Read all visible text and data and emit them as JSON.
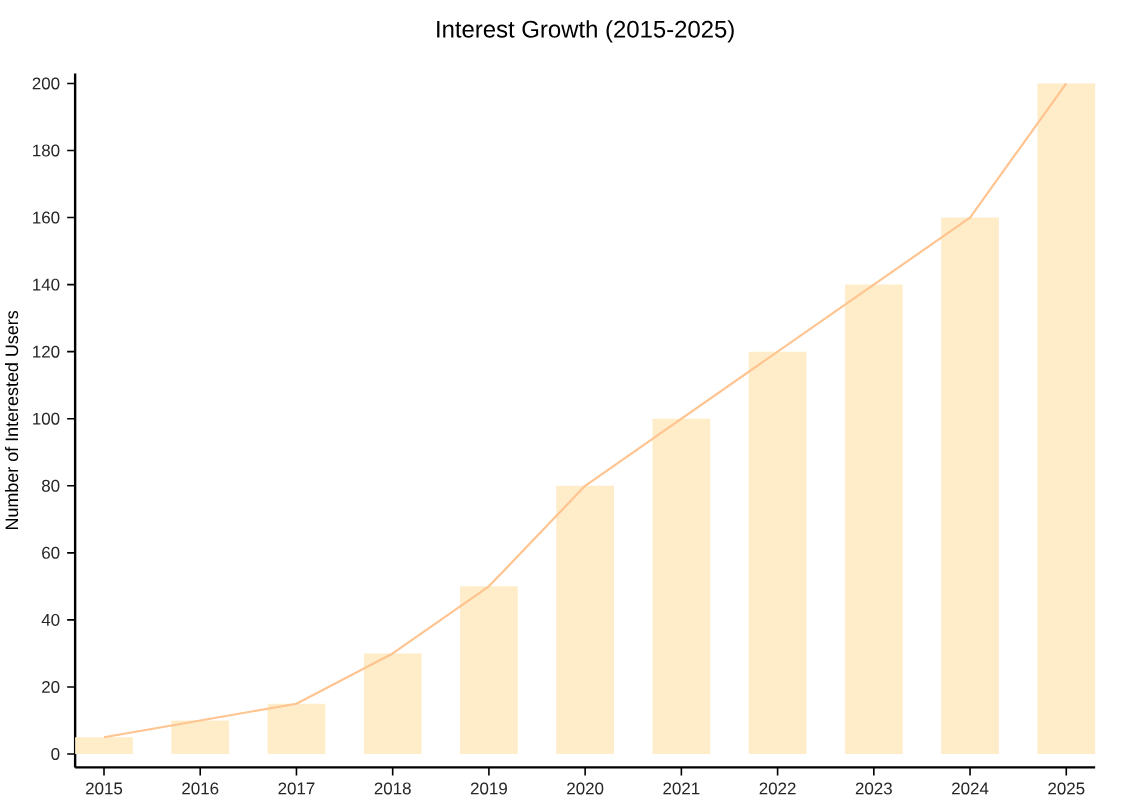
{
  "chart_data": {
    "type": "bar",
    "title": "Interest Growth (2015-2025)",
    "ylabel": "Number of Interested Users",
    "categories": [
      "2015",
      "2016",
      "2017",
      "2018",
      "2019",
      "2020",
      "2021",
      "2022",
      "2023",
      "2024",
      "2025"
    ],
    "series": [
      {
        "color": "#ffecc9",
        "values": [
          5,
          10,
          15,
          30,
          50,
          80,
          100,
          120,
          140,
          160,
          200
        ]
      },
      {
        "type": "line",
        "color": "#ffc48f",
        "values": [
          5,
          10,
          15,
          30,
          50,
          80,
          100,
          120,
          140,
          160,
          200
        ]
      }
    ],
    "ylim": [
      -4,
      203
    ],
    "yticks": [
      0,
      20,
      40,
      60,
      80,
      100,
      120,
      140,
      160,
      180,
      200
    ]
  }
}
